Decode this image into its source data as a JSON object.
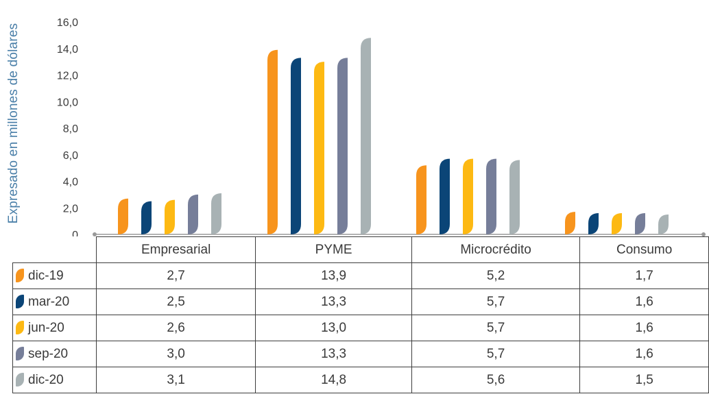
{
  "chart_data": {
    "type": "bar",
    "ylabel": "Expresado en millones de dólares",
    "ylim": [
      0,
      16
    ],
    "yticks": [
      "0",
      "2,0",
      "4,0",
      "6,0",
      "8,0",
      "10,0",
      "12,0",
      "14,0",
      "16,0"
    ],
    "grid": false,
    "legend": "table-left",
    "categories": [
      "Empresarial",
      "PYME",
      "Microcrédito",
      "Consumo"
    ],
    "series": [
      {
        "name": "dic-19",
        "color": "#f7941d",
        "values": [
          2.7,
          13.9,
          5.2,
          1.7
        ],
        "labels": [
          "2,7",
          "13,9",
          "5,2",
          "1,7"
        ]
      },
      {
        "name": "mar-20",
        "color": "#0b4577",
        "values": [
          2.5,
          13.3,
          5.7,
          1.6
        ],
        "labels": [
          "2,5",
          "13,3",
          "5,7",
          "1,6"
        ]
      },
      {
        "name": "jun-20",
        "color": "#fdb913",
        "values": [
          2.6,
          13.0,
          5.7,
          1.6
        ],
        "labels": [
          "2,6",
          "13,0",
          "5,7",
          "1,6"
        ]
      },
      {
        "name": "sep-20",
        "color": "#767e99",
        "values": [
          3.0,
          13.3,
          5.7,
          1.6
        ],
        "labels": [
          "3,0",
          "13,3",
          "5,7",
          "1,6"
        ]
      },
      {
        "name": "dic-20",
        "color": "#a8b2b4",
        "values": [
          3.1,
          14.8,
          5.6,
          1.5
        ],
        "labels": [
          "3,1",
          "14,8",
          "5,6",
          "1,5"
        ]
      }
    ]
  }
}
